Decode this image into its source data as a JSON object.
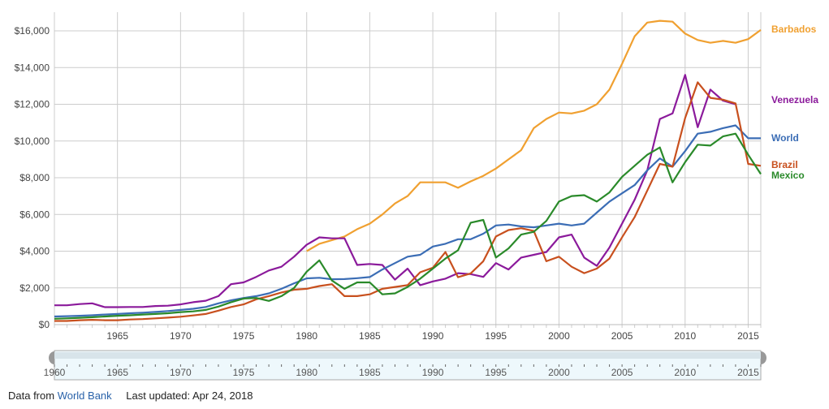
{
  "chart_data": {
    "type": "line",
    "title": "",
    "xlabel": "",
    "ylabel": "",
    "x": [
      1960,
      1961,
      1962,
      1963,
      1964,
      1965,
      1966,
      1967,
      1968,
      1969,
      1970,
      1971,
      1972,
      1973,
      1974,
      1975,
      1976,
      1977,
      1978,
      1979,
      1980,
      1981,
      1982,
      1983,
      1984,
      1985,
      1986,
      1987,
      1988,
      1989,
      1990,
      1991,
      1992,
      1993,
      1994,
      1995,
      1996,
      1997,
      1998,
      1999,
      2000,
      2001,
      2002,
      2003,
      2004,
      2005,
      2006,
      2007,
      2008,
      2009,
      2010,
      2011,
      2012,
      2013,
      2014,
      2015,
      2016
    ],
    "xlim": [
      1960,
      2016
    ],
    "ylim": [
      0,
      17000
    ],
    "y_ticks": [
      0,
      2000,
      4000,
      6000,
      8000,
      10000,
      12000,
      14000,
      16000
    ],
    "y_tick_labels": [
      "$0",
      "$2,000",
      "$4,000",
      "$6,000",
      "$8,000",
      "$10,000",
      "$12,000",
      "$14,000",
      "$16,000"
    ],
    "x_ticks": [
      1965,
      1970,
      1975,
      1980,
      1985,
      1990,
      1995,
      2000,
      2005,
      2010,
      2015
    ],
    "x_tick_labels": [
      "1965",
      "1970",
      "1975",
      "1980",
      "1985",
      "1990",
      "1995",
      "2000",
      "2005",
      "2010",
      "2015"
    ],
    "grid": true,
    "legend_placement": "right (end-of-line labels)",
    "series": [
      {
        "name": "Barbados",
        "color": "#f0a030",
        "start_year": 1980,
        "values": [
          4000,
          4400,
          4600,
          4800,
          5200,
          5500,
          6000,
          6600,
          7000,
          7750,
          7750,
          7750,
          7450,
          7800,
          8100,
          8500,
          9000,
          9500,
          10700,
          11200,
          11550,
          11500,
          11650,
          12000,
          12800,
          14200,
          15700,
          16450,
          16550,
          16500,
          15850,
          15500,
          15350,
          15450,
          15350,
          15550,
          16050
        ]
      },
      {
        "name": "Venezuela",
        "color": "#8b1a9b",
        "start_year": 1960,
        "values": [
          1050,
          1050,
          1120,
          1160,
          950,
          950,
          960,
          960,
          1010,
          1030,
          1100,
          1220,
          1300,
          1550,
          2200,
          2300,
          2600,
          2950,
          3150,
          3700,
          4350,
          4750,
          4700,
          4700,
          3250,
          3300,
          3250,
          2450,
          3050,
          2150,
          2350,
          2500,
          2800,
          2750,
          2600,
          3350,
          3000,
          3650,
          3800,
          3950,
          4750,
          4900,
          3650,
          3200,
          4200,
          5500,
          6800,
          8400,
          11200,
          11500,
          13600,
          10750,
          12800,
          12200,
          12000,
          null,
          null
        ]
      },
      {
        "name": "World",
        "color": "#3b6db5",
        "start_year": 1960,
        "values": [
          440,
          460,
          480,
          510,
          550,
          580,
          620,
          650,
          690,
          740,
          800,
          860,
          960,
          1160,
          1320,
          1450,
          1550,
          1700,
          1950,
          2250,
          2520,
          2550,
          2470,
          2480,
          2530,
          2590,
          3000,
          3350,
          3700,
          3800,
          4250,
          4400,
          4650,
          4650,
          4950,
          5400,
          5450,
          5350,
          5300,
          5400,
          5500,
          5400,
          5500,
          6100,
          6700,
          7150,
          7600,
          8400,
          9050,
          8600,
          9450,
          10400,
          10500,
          10700,
          10850,
          10150,
          10150
        ]
      },
      {
        "name": "Brazil",
        "color": "#c8501e",
        "start_year": 1960,
        "values": [
          200,
          200,
          240,
          260,
          240,
          240,
          280,
          300,
          340,
          380,
          430,
          500,
          580,
          760,
          960,
          1100,
          1380,
          1550,
          1750,
          1900,
          1950,
          2100,
          2200,
          1550,
          1550,
          1650,
          1950,
          2050,
          2150,
          2850,
          3100,
          3950,
          2580,
          2790,
          3450,
          4800,
          5150,
          5250,
          5100,
          3450,
          3700,
          3150,
          2800,
          3050,
          3600,
          4750,
          5850,
          7300,
          8750,
          8600,
          11250,
          13200,
          12350,
          12250,
          12050,
          8750,
          8650
        ]
      },
      {
        "name": "Mexico",
        "color": "#2a8a2a",
        "start_year": 1960,
        "values": [
          320,
          340,
          370,
          400,
          440,
          480,
          510,
          550,
          580,
          620,
          680,
          720,
          800,
          980,
          1220,
          1420,
          1450,
          1290,
          1550,
          2000,
          2880,
          3500,
          2400,
          1950,
          2300,
          2300,
          1650,
          1700,
          2050,
          2500,
          3050,
          3600,
          4050,
          5550,
          5700,
          3650,
          4150,
          4900,
          5050,
          5650,
          6700,
          7000,
          7050,
          6700,
          7200,
          8050,
          8650,
          9250,
          9650,
          7750,
          8850,
          9800,
          9750,
          10250,
          10400,
          9250,
          8200
        ]
      }
    ],
    "navigator": {
      "range": [
        1960,
        2016
      ],
      "tick_labels": [
        "1960",
        "1965",
        "1970",
        "1975",
        "1980",
        "1985",
        "1990",
        "1995",
        "2000",
        "2005",
        "2010",
        "2015"
      ]
    }
  },
  "footer": {
    "source_prefix": "Data from",
    "source_link": "World Bank",
    "updated": "Last updated: Apr 24, 2018"
  }
}
